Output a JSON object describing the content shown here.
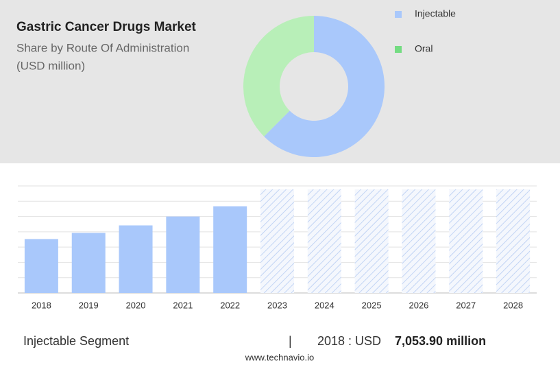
{
  "header": {
    "title": "Gastric Cancer Drugs Market",
    "subtitle": "Share by Route Of Administration",
    "unit": "(USD million)"
  },
  "chart_data": [
    {
      "type": "donut",
      "categories": [
        "Injectable",
        "Oral"
      ],
      "values": [
        62.5,
        37.5
      ],
      "colors": [
        "#a9c8fb",
        "#b8efb8"
      ],
      "legend_colors": [
        "#a9c8fb",
        "#74dc82"
      ],
      "legend": "top-right"
    },
    {
      "type": "bar",
      "categories": [
        "2018",
        "2019",
        "2020",
        "2021",
        "2022",
        "2023",
        "2024",
        "2025",
        "2026",
        "2027",
        "2028"
      ],
      "values": [
        7053.9,
        7860,
        8840,
        10000,
        11340,
        null,
        null,
        null,
        null,
        null,
        null
      ],
      "color": "#a9c8fb",
      "ylim": [
        0,
        14000
      ],
      "yticks": [
        0,
        2000,
        4000,
        6000,
        8000,
        10000,
        12000,
        14000
      ],
      "grid": true
    }
  ],
  "footer": {
    "segment": "Injectable Segment",
    "separator": "|",
    "year_label": "2018 : USD",
    "highlight": "7,053.90 million",
    "source": "www.technavio.io"
  }
}
